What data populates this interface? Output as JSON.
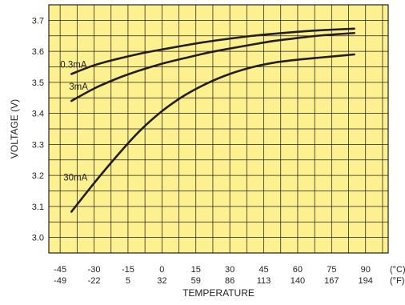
{
  "chart_data": {
    "type": "line",
    "title": "",
    "xlabel": "TEMPERATURE",
    "ylabel": "VOLTAGE (V)",
    "xlim": [
      -50,
      100
    ],
    "ylim": [
      2.95,
      3.75
    ],
    "x_ticks": [
      -45,
      -30,
      -15,
      0,
      15,
      30,
      45,
      60,
      75,
      90
    ],
    "x_ticks_fahrenheit": [
      "-49",
      "-22",
      "5",
      "32",
      "59",
      "86",
      "113",
      "140",
      "167",
      "194"
    ],
    "x_unit_celsius": "(°C)",
    "x_unit_fahrenheit": "(°F)",
    "y_ticks": [
      "3.0",
      "3.1",
      "3.2",
      "3.3",
      "3.4",
      "3.5",
      "3.6",
      "3.7"
    ],
    "grid": true,
    "background_color": "#fdf08f",
    "line_color": "#231f20",
    "series": [
      {
        "name": "0.3mA",
        "x": [
          -40,
          -30,
          -20,
          -10,
          0,
          10,
          20,
          30,
          40,
          50,
          60,
          70,
          85
        ],
        "y": [
          3.527,
          3.555,
          3.575,
          3.592,
          3.606,
          3.619,
          3.631,
          3.641,
          3.65,
          3.657,
          3.663,
          3.668,
          3.673
        ]
      },
      {
        "name": "3mA",
        "x": [
          -40,
          -30,
          -20,
          -10,
          0,
          10,
          20,
          30,
          40,
          50,
          60,
          70,
          85
        ],
        "y": [
          3.44,
          3.48,
          3.512,
          3.538,
          3.56,
          3.578,
          3.595,
          3.609,
          3.622,
          3.634,
          3.643,
          3.651,
          3.659
        ]
      },
      {
        "name": "30mA",
        "x": [
          -40,
          -30,
          -20,
          -10,
          0,
          10,
          20,
          30,
          40,
          50,
          60,
          70,
          85
        ],
        "y": [
          3.083,
          3.175,
          3.262,
          3.342,
          3.407,
          3.458,
          3.497,
          3.527,
          3.549,
          3.564,
          3.573,
          3.58,
          3.59
        ]
      }
    ]
  }
}
